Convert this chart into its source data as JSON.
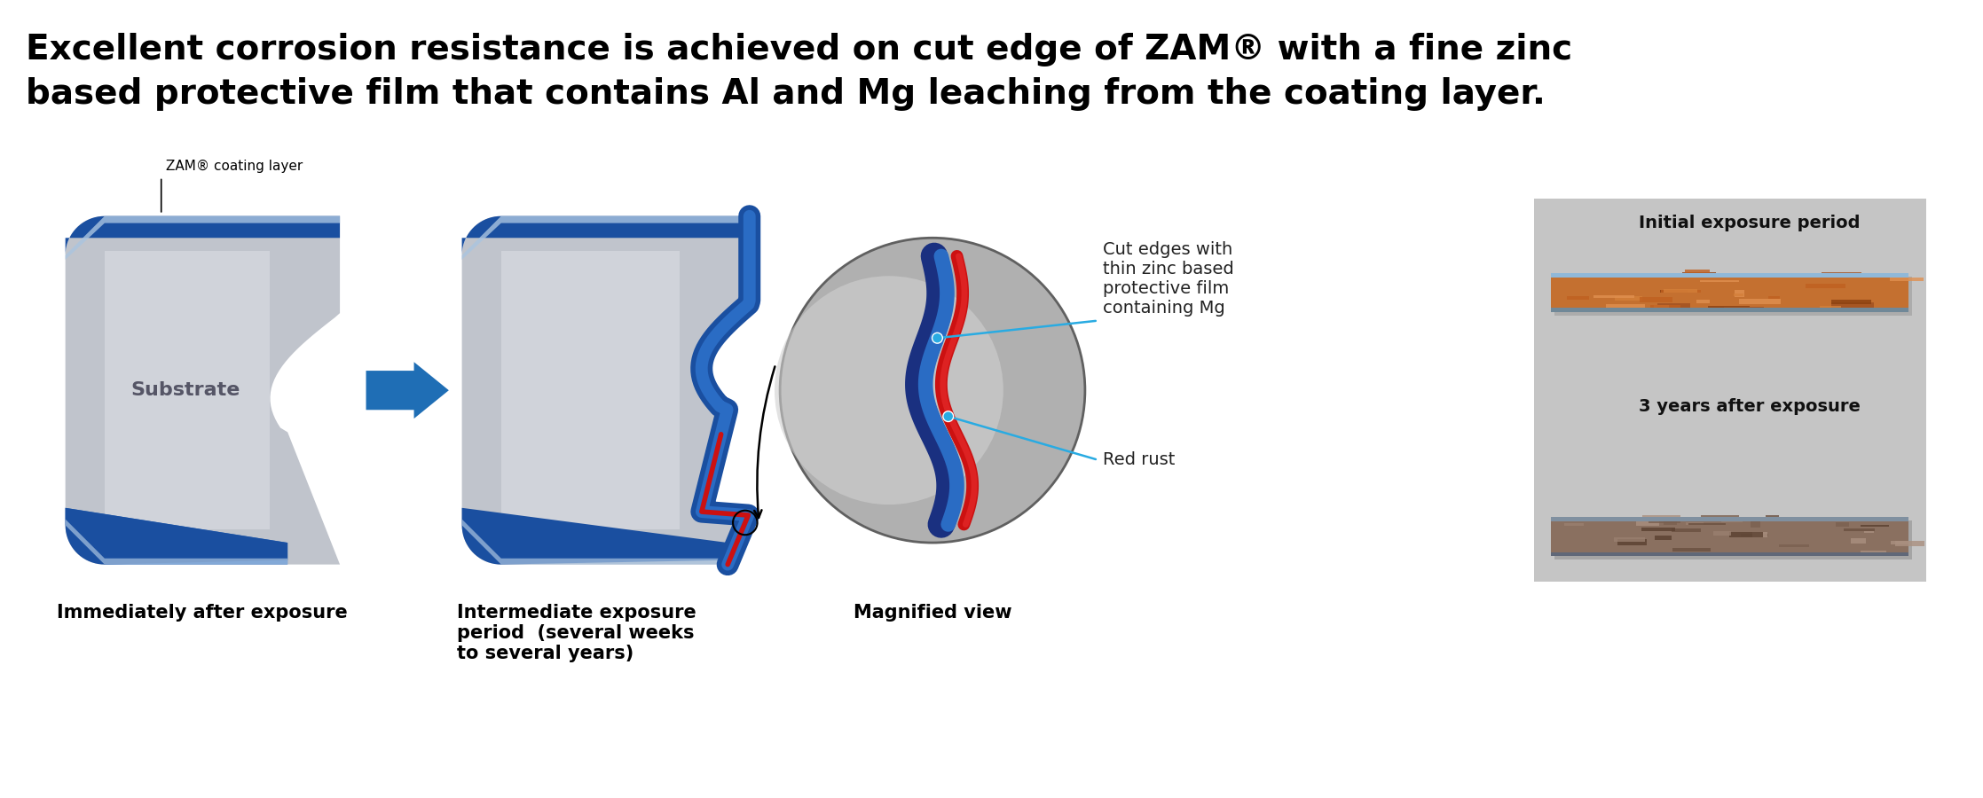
{
  "title_line1": "Excellent corrosion resistance is achieved on cut edge of ZAM® with a fine zinc",
  "title_line2": "based protective film that contains Al and Mg leaching from the coating layer.",
  "title_fontsize": 28,
  "background_color": "#ffffff",
  "label_immediately": "Immediately after exposure",
  "label_intermediate": "Intermediate exposure\nperiod  (several weeks\nto several years)",
  "label_magnified": "Magnified view",
  "label_cut_edges": "Cut edges with\nthin zinc based\nprotective film\ncontaining Mg",
  "label_red_rust": "Red rust",
  "label_zam_coating": "ZAM® coating layer",
  "label_substrate": "Substrate",
  "label_initial": "Initial exposure period",
  "label_3years": "3 years after exposure",
  "arrow_color": "#1f6eb5",
  "blue_dark": "#1a4fa0",
  "blue_mid": "#2a6cc4",
  "blue_light": "#aac4e0",
  "substrate_mid": "#c0c4cc",
  "substrate_light": "#d8dae0",
  "red_rust_color": "#cc1111",
  "callout_color": "#29abe2",
  "panel_bg": "#c5c5c5"
}
